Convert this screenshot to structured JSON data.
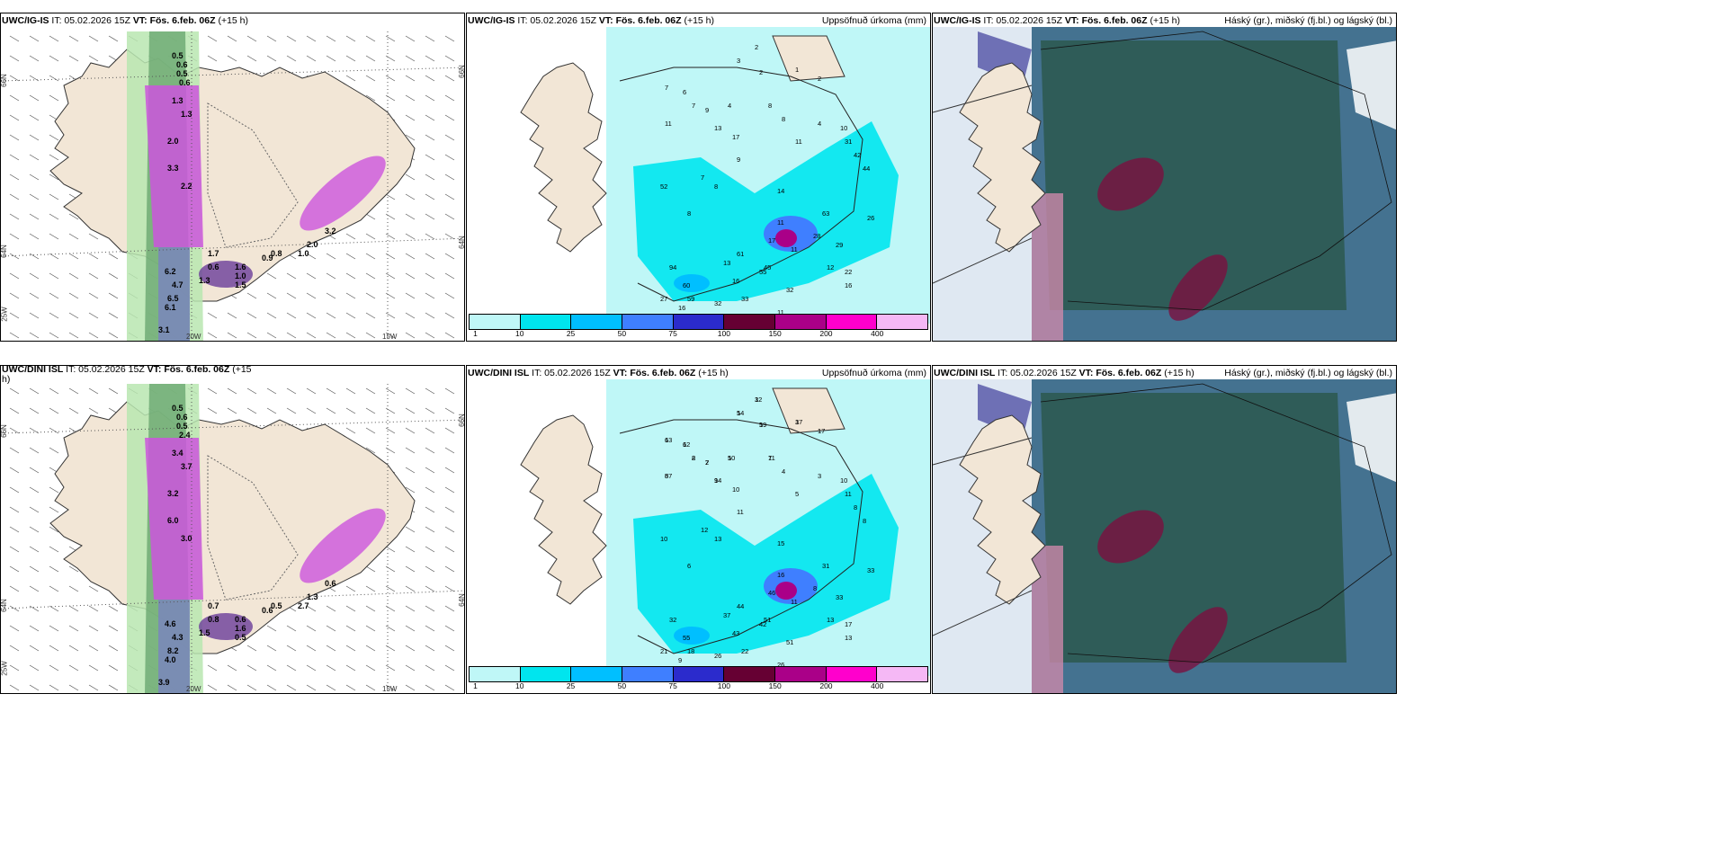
{
  "panels": [
    {
      "id": "p1",
      "model": "UWC/IG-IS",
      "it": "IT: 05.02.2026 15Z",
      "vt_label": "VT:",
      "vt": "Fös. 6.feb. 06Z",
      "offset": "(+15 h)",
      "right_title": "",
      "lats": [
        "66N",
        "64N",
        "25W"
      ],
      "lons": [
        "20W",
        "15W"
      ],
      "rlat": [
        "66N",
        "64N"
      ]
    },
    {
      "id": "p2",
      "model": "UWC/IG-IS",
      "it": "IT: 05.02.2026 15Z",
      "vt_label": "VT:",
      "vt": "Fös. 6.feb. 06Z",
      "offset": "(+15 h)",
      "right_title": "Uppsöfnuð úrkoma (mm)"
    },
    {
      "id": "p3",
      "model": "UWC/IG-IS",
      "it": "IT: 05.02.2026 15Z",
      "vt_label": "VT:",
      "vt": "Fös. 6.feb. 06Z",
      "offset": "(+15 h)",
      "right_title": "Háský (gr.), miðský (fj.bl.) og lágský (bl.)"
    },
    {
      "id": "p4",
      "model": "UWC/DINI ISL",
      "it": "IT: 05.02.2026 15Z",
      "vt_label": "VT:",
      "vt": "Fös. 6.feb. 06Z",
      "offset": "(+15",
      "offset2": "h)",
      "right_title": "",
      "lats": [
        "66N",
        "64N",
        "25W"
      ],
      "lons": [
        "20W",
        "15W"
      ],
      "rlat": [
        "66N",
        "64N"
      ]
    },
    {
      "id": "p5",
      "model": "UWC/DINI ISL",
      "it": "IT: 05.02.2026 15Z",
      "vt_label": "VT:",
      "vt": "Fös. 6.feb. 06Z",
      "offset": "(+15 h)",
      "right_title": "Uppsöfnuð úrkoma (mm)"
    },
    {
      "id": "p6",
      "model": "UWC/DINI ISL",
      "it": "IT: 05.02.2026 15Z",
      "vt_label": "VT:",
      "vt": "Fös. 6.feb. 06Z",
      "offset": "(+15 h)",
      "right_title": "Háský (gr.), miðský (fj.bl.) og lágský (bl.)"
    }
  ],
  "legend": {
    "labels": [
      "1",
      "10",
      "25",
      "50",
      "75",
      "100",
      "150",
      "200",
      "400"
    ],
    "colors": [
      "#bff7f7",
      "#00e5ee",
      "#00bfff",
      "#3f7fff",
      "#2b2bcc",
      "#660033",
      "#aa0088",
      "#ff00cc",
      "#f5b8f5"
    ]
  },
  "precip_values_top": [
    "2",
    "3",
    "2",
    "1",
    "2",
    "7",
    "6",
    "7",
    "9",
    "4",
    "8",
    "11",
    "13",
    "17",
    "9",
    "8",
    "4",
    "11",
    "10",
    "31",
    "42",
    "44",
    "52",
    "7",
    "8",
    "8",
    "14",
    "11",
    "28",
    "29",
    "26",
    "17",
    "13",
    "16",
    "61",
    "45",
    "94",
    "60",
    "59",
    "27",
    "32",
    "33",
    "22",
    "16",
    "16",
    "11",
    "12",
    "11",
    "32",
    "38",
    "13",
    "55",
    "63",
    "11",
    "11"
  ],
  "precip_values_bottom": [
    "3",
    "5",
    "5",
    "3",
    "1",
    "6",
    "6",
    "2",
    "2",
    "5",
    "7",
    "8",
    "9",
    "10",
    "11",
    "4",
    "3",
    "5",
    "10",
    "11",
    "8",
    "8",
    "10",
    "12",
    "13",
    "6",
    "15",
    "16",
    "8",
    "33",
    "33",
    "46",
    "37",
    "43",
    "44",
    "51",
    "32",
    "55",
    "18",
    "21",
    "26",
    "22",
    "17",
    "13",
    "9",
    "11",
    "13",
    "26",
    "51",
    "68",
    "86",
    "42",
    "31",
    "28",
    "34",
    "12",
    "14",
    "19",
    "17",
    "17",
    "13",
    "12",
    "8",
    "7",
    "10",
    "11",
    "57",
    "14"
  ],
  "wind_values_top": [
    "0.5",
    "0.6",
    "0.5",
    "0.6",
    "1.3",
    "1.3",
    "2.0",
    "3.3",
    "2.2",
    "6.2",
    "6.5",
    "6.1",
    "3.1",
    "4.7",
    "1.7",
    "0.6",
    "1.6",
    "1.0",
    "1.3",
    "1.5",
    "0.9",
    "0.8",
    "3.2",
    "2.0",
    "1.0"
  ],
  "wind_values_bottom": [
    "0.5",
    "0.6",
    "0.5",
    "2.4",
    "3.4",
    "3.7",
    "3.2",
    "6.0",
    "3.0",
    "4.6",
    "8.2",
    "4.0",
    "3.9",
    "4.3",
    "0.7",
    "0.8",
    "0.6",
    "1.6",
    "1.5",
    "0.5",
    "0.6",
    "0.5",
    "0.6",
    "1.3",
    "2.7"
  ],
  "cloud_colors": {
    "high": "#cc88aa",
    "mid": "#3b6b8a",
    "low": "#2e5a52",
    "dark": "#7a1040"
  }
}
